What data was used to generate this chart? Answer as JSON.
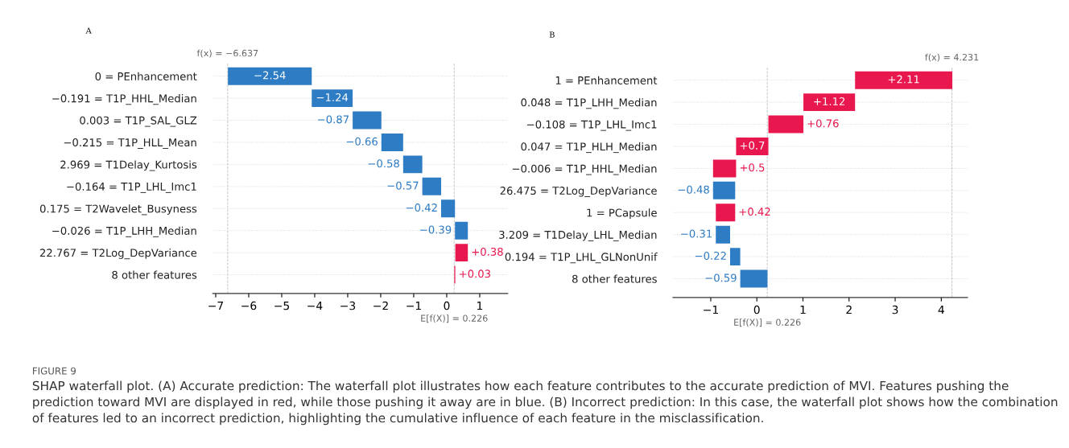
{
  "chart_data": [
    {
      "type": "bar",
      "orientation": "horizontal",
      "title": "A",
      "categories": [
        "0 = PEnhancement",
        "−0.191 = T1P_HHL_Median",
        "0.003 = T1P_SAL_GLZ",
        "−0.215 = T1P_HLL_Mean",
        "2.969 = T1Delay_Kurtosis",
        "−0.164 = T1P_LHL_Imc1",
        "0.175 = T2Wavelet_Busyness",
        "−0.026 = T1P_LHH_Median",
        "22.767 = T2Log_DepVariance",
        "8 other features"
      ],
      "values": [
        -2.54,
        -1.24,
        -0.87,
        -0.66,
        -0.58,
        -0.57,
        -0.42,
        -0.39,
        0.38,
        0.03
      ],
      "base": [
        -4.09,
        -2.85,
        -1.98,
        -1.32,
        -0.74,
        -0.17,
        0.25,
        0.64,
        0.26,
        0.23
      ],
      "colors": [
        "#2e7cc4",
        "#2e7cc4",
        "#2e7cc4",
        "#2e7cc4",
        "#2e7cc4",
        "#2e7cc4",
        "#2e7cc4",
        "#2e7cc4",
        "#e8184f",
        "#e8184f"
      ],
      "value_labels": [
        "−2.54",
        "−1.24",
        "−0.87",
        "−0.66",
        "−0.58",
        "−0.57",
        "−0.42",
        "−0.39",
        "+0.38",
        "+0.03"
      ],
      "xlim": [
        -7.09,
        1.85
      ],
      "xticks": [
        -7,
        -6,
        -5,
        -4,
        -3,
        -2,
        -1,
        0,
        1
      ],
      "ref_lines": [
        {
          "axis": "x",
          "value": -6.637,
          "label": "f(x) = −6.637",
          "color": "#bbbbbb",
          "line_style": "dashed"
        },
        {
          "axis": "x",
          "value": 0.226,
          "label": "E[f(X)] = 0.226",
          "color": "#bbbbbb",
          "line_style": "dashed"
        }
      ],
      "grid": "y",
      "annotations": [
        "FIGURE 9",
        "SHAP waterfall plot. (A) Accurate prediction: The waterfall plot illustrates how each feature contributes to the accurate prediction of MVI. Features pushing the prediction toward MVI are displayed in red, while those pushing it away are in blue. (B) Incorrect prediction: In this case, the waterfall plot shows how the combination of features led to an incorrect prediction, highlighting the cumulative influence of each feature in the misclassification."
      ]
    },
    {
      "type": "bar",
      "orientation": "horizontal",
      "title": "B",
      "categories": [
        "1 = PEnhancement",
        "0.048 = T1P_LHH_Median",
        "−0.108 = T1P_LHL_Imc1",
        "0.047 = T1P_HLH_Median",
        "−0.006 = T1P_HHL_Median",
        "26.475 = T2Log_DepVariance",
        "1 = PCapsule",
        "3.209 = T1Delay_LHL_Median",
        "0.194 = T1P_LHL_GLNonUnif",
        "8 other features"
      ],
      "values": [
        2.11,
        1.12,
        0.76,
        0.7,
        0.5,
        -0.48,
        0.42,
        -0.31,
        -0.22,
        -0.59
      ],
      "base": [
        2.13,
        1.01,
        0.25,
        -0.45,
        -0.95,
        -0.47,
        -0.89,
        -0.58,
        -0.36,
        0.23
      ],
      "colors": [
        "#e8184f",
        "#e8184f",
        "#e8184f",
        "#e8184f",
        "#e8184f",
        "#2e7cc4",
        "#e8184f",
        "#2e7cc4",
        "#2e7cc4",
        "#2e7cc4"
      ],
      "value_labels": [
        "+2.11",
        "+1.12",
        "+0.76",
        "+0.7",
        "+0.5",
        "−0.48",
        "+0.42",
        "−0.31",
        "−0.22",
        "−0.59"
      ],
      "xlim": [
        -1.82,
        4.57
      ],
      "xticks": [
        -1,
        0,
        1,
        2,
        3,
        4
      ],
      "ref_lines": [
        {
          "axis": "x",
          "value": 4.231,
          "label": "f(x) = 4.231",
          "color": "#bbbbbb",
          "line_style": "dashed"
        },
        {
          "axis": "x",
          "value": 0.226,
          "label": "E[f(X)] = 0.226",
          "color": "#bbbbbb",
          "line_style": "dashed"
        }
      ],
      "grid": "y"
    }
  ]
}
